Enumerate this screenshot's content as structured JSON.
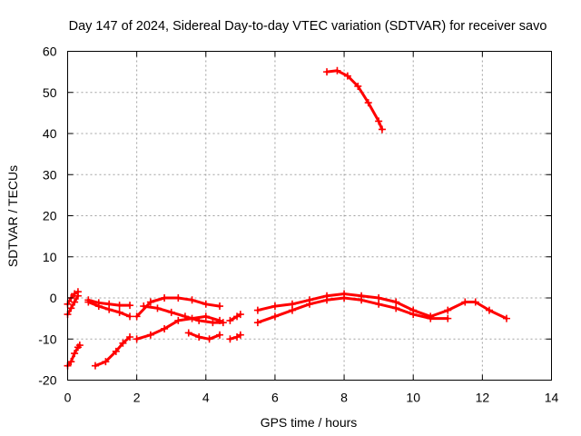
{
  "chart_data": {
    "type": "line",
    "title": "Day 147 of 2024, Sidereal Day-to-day VTEC variation (SDTVAR) for receiver savo",
    "xlabel": "GPS time / hours",
    "ylabel": "SDTVAR / TECUs",
    "xlim": [
      0,
      14
    ],
    "ylim": [
      -20,
      60
    ],
    "x_ticks": [
      "0",
      "2",
      "4",
      "6",
      "8",
      "10",
      "12",
      "14"
    ],
    "y_ticks": [
      "-20",
      "-10",
      "0",
      "10",
      "20",
      "30",
      "40",
      "50",
      "60"
    ],
    "grid": true,
    "series_color": "#ff0000",
    "series": [
      {
        "name": "arc-1",
        "x": [
          0.0,
          0.1,
          0.2,
          0.3,
          0.35
        ],
        "y": [
          -16.5,
          -15.5,
          -13.5,
          -12.0,
          -11.5
        ]
      },
      {
        "name": "arc-2",
        "x": [
          0.0,
          0.1,
          0.2,
          0.3
        ],
        "y": [
          -4.0,
          -2.5,
          -1.0,
          0.5
        ]
      },
      {
        "name": "arc-3",
        "x": [
          0.0,
          0.1,
          0.2,
          0.3
        ],
        "y": [
          -1.5,
          0.0,
          1.0,
          1.5
        ]
      },
      {
        "name": "arc-4",
        "x": [
          0.6,
          0.9,
          1.2,
          1.5,
          1.8
        ],
        "y": [
          -1.0,
          -2.0,
          -2.8,
          -3.5,
          -4.5
        ]
      },
      {
        "name": "arc-5",
        "x": [
          0.6,
          0.9,
          1.2,
          1.5,
          1.8
        ],
        "y": [
          -0.5,
          -1.2,
          -1.5,
          -1.8,
          -1.8
        ]
      },
      {
        "name": "arc-6",
        "x": [
          0.8,
          1.1,
          1.4,
          1.6,
          1.8
        ],
        "y": [
          -16.5,
          -15.5,
          -13.0,
          -11.0,
          -9.5
        ]
      },
      {
        "name": "arc-7",
        "x": [
          2.0,
          2.4,
          2.8,
          3.2,
          3.6,
          4.0,
          4.4
        ],
        "y": [
          -10.0,
          -9.0,
          -7.5,
          -5.5,
          -5.0,
          -4.5,
          -5.5
        ]
      },
      {
        "name": "arc-8",
        "x": [
          2.0,
          2.4,
          2.8,
          3.2,
          3.6,
          4.0,
          4.4
        ],
        "y": [
          -4.5,
          -1.0,
          0.0,
          0.0,
          -0.5,
          -1.5,
          -2.0
        ]
      },
      {
        "name": "arc-9",
        "x": [
          2.2,
          2.6,
          3.0,
          3.4,
          3.8,
          4.2,
          4.5
        ],
        "y": [
          -2.0,
          -2.5,
          -3.5,
          -4.5,
          -5.5,
          -6.0,
          -6.0
        ]
      },
      {
        "name": "arc-10",
        "x": [
          3.5,
          3.8,
          4.1,
          4.4
        ],
        "y": [
          -8.5,
          -9.5,
          -10.0,
          -9.0
        ]
      },
      {
        "name": "arc-11",
        "x": [
          4.7,
          4.9,
          5.0
        ],
        "y": [
          -10.0,
          -9.5,
          -9.0
        ]
      },
      {
        "name": "arc-12",
        "x": [
          4.7,
          4.9,
          5.0
        ],
        "y": [
          -5.5,
          -4.5,
          -4.0
        ]
      },
      {
        "name": "arc-13",
        "x": [
          5.5,
          6.0,
          6.5,
          7.0,
          7.5,
          8.0,
          8.5,
          9.0,
          9.5,
          10.0,
          10.5,
          11.0,
          11.5,
          11.8,
          12.2,
          12.7
        ],
        "y": [
          -3.0,
          -2.0,
          -1.5,
          -0.5,
          0.5,
          1.0,
          0.5,
          0.0,
          -1.0,
          -3.0,
          -4.5,
          -3.0,
          -1.0,
          -1.0,
          -3.0,
          -5.0
        ]
      },
      {
        "name": "arc-14",
        "x": [
          5.5,
          6.0,
          6.5,
          7.0,
          7.5,
          8.0,
          8.5,
          9.0,
          9.5,
          10.0,
          10.5,
          11.0
        ],
        "y": [
          -6.0,
          -4.5,
          -3.0,
          -1.5,
          -0.5,
          0.0,
          -0.5,
          -1.5,
          -2.5,
          -4.0,
          -5.0,
          -5.0
        ]
      },
      {
        "name": "arc-15",
        "x": [
          7.5,
          7.8,
          8.1,
          8.4,
          8.7,
          9.0,
          9.1
        ],
        "y": [
          55.0,
          55.3,
          54.0,
          51.5,
          47.5,
          43.0,
          41.0
        ]
      }
    ]
  }
}
